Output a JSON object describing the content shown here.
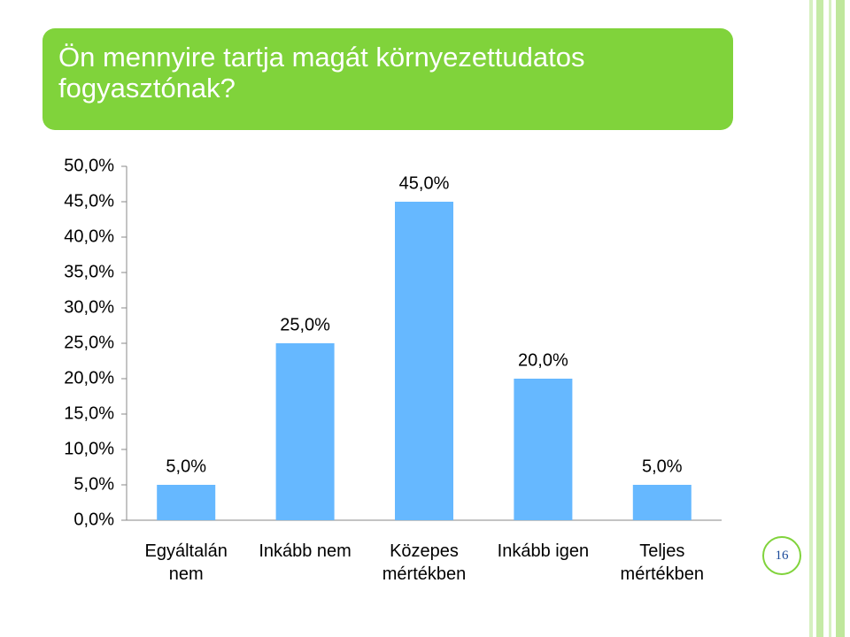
{
  "chart_data": {
    "type": "bar",
    "title": "Ön mennyire tartja magát környezettudatos fogyasztónak?",
    "categories": [
      "Egyáltalán nem",
      "Inkább nem",
      "Közepes mértékben",
      "Inkább igen",
      "Teljes mértékben"
    ],
    "values": [
      5,
      25,
      45,
      20,
      5
    ],
    "value_labels": [
      "5,0%",
      "25,0%",
      "45,0%",
      "20,0%",
      "5,0%"
    ],
    "color": "#66b8ff",
    "ylim": [
      0,
      50
    ],
    "yticks": [
      {
        "value": 0,
        "label": "0,0%"
      },
      {
        "value": 5,
        "label": "5,0%"
      },
      {
        "value": 10,
        "label": "10,0%"
      },
      {
        "value": 15,
        "label": "15,0%"
      },
      {
        "value": 20,
        "label": "20,0%"
      },
      {
        "value": 25,
        "label": "25,0%"
      },
      {
        "value": 30,
        "label": "30,0%"
      },
      {
        "value": 35,
        "label": "35,0%"
      },
      {
        "value": 40,
        "label": "40,0%"
      },
      {
        "value": 45,
        "label": "45,0%"
      },
      {
        "value": 50,
        "label": "50,0%"
      }
    ],
    "grid": false
  },
  "page_number": "16"
}
